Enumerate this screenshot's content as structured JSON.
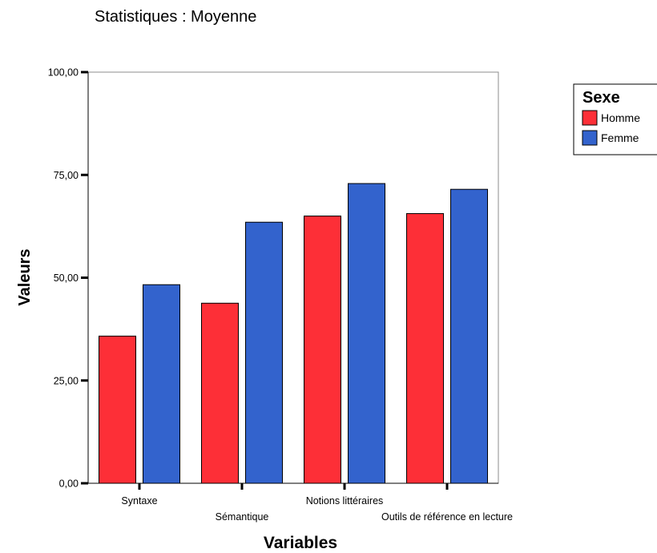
{
  "chart_data": {
    "type": "bar",
    "title": "Statistiques  : Moyenne",
    "xlabel": "Variables",
    "ylabel": "Valeurs",
    "ylim": [
      0,
      100
    ],
    "yticks": [
      0,
      25,
      50,
      75,
      100
    ],
    "ytick_labels": [
      "0,00",
      "25,00",
      "50,00",
      "75,00",
      "100,00"
    ],
    "categories": [
      "Syntaxe",
      "Sémantique",
      "Notions littéraires",
      "Outils de référence en lecture"
    ],
    "series": [
      {
        "name": "Homme",
        "color": "#fd2f37",
        "values": [
          35.8,
          43.8,
          65.0,
          65.6
        ]
      },
      {
        "name": "Femme",
        "color": "#3363cd",
        "values": [
          48.3,
          63.5,
          72.9,
          71.5
        ]
      }
    ],
    "legend": {
      "title": "Sexe",
      "position": "right"
    },
    "grid": false
  }
}
